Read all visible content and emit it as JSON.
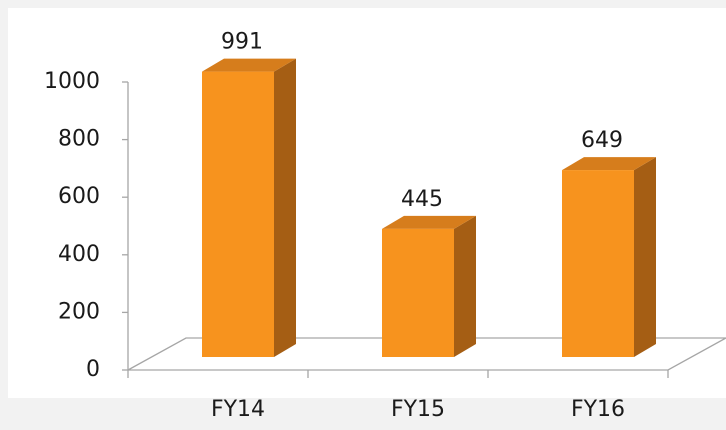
{
  "chart_data": {
    "type": "bar3d",
    "categories": [
      "FY14",
      "FY15",
      "FY16"
    ],
    "values": [
      991,
      445,
      649
    ],
    "colors": {
      "front": "#f7931e",
      "side": "#a55e14",
      "top": "#d67d1c"
    },
    "ylim": [
      0,
      1000
    ],
    "yticks": [
      0,
      200,
      400,
      600,
      800,
      1000
    ]
  }
}
